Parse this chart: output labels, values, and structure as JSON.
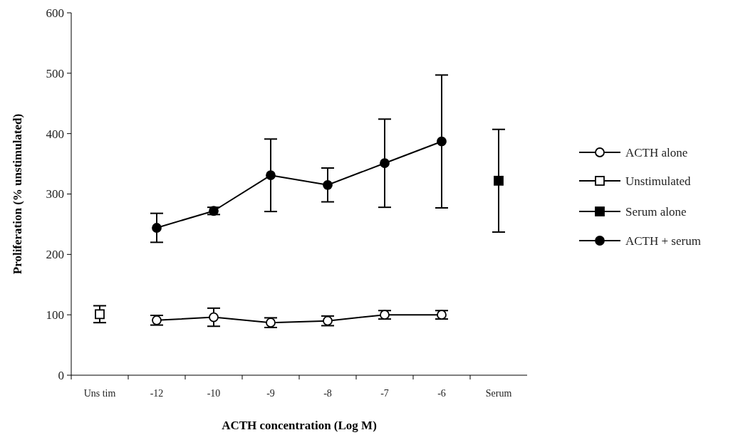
{
  "chart_data": {
    "type": "line",
    "xlabel": "ACTH concentration (Log M)",
    "ylabel": "Proliferation (% unstimulated)",
    "categories": [
      "Uns tim",
      "-12",
      "-10",
      "-9",
      "-8",
      "-7",
      "-6",
      "Serum"
    ],
    "ylim": [
      0,
      600
    ],
    "yticks": [
      0,
      100,
      200,
      300,
      400,
      500,
      600
    ],
    "grid": false,
    "legend": "right",
    "line_style": "solid",
    "series": [
      {
        "name": "ACTH alone",
        "marker": "circle",
        "color": "#ffffff",
        "values": [
          null,
          91,
          96,
          87,
          90,
          100,
          100,
          null
        ],
        "errors": [
          null,
          8,
          15,
          8,
          8,
          7,
          7,
          null
        ]
      },
      {
        "name": "Unstimulated",
        "type": "scatter",
        "marker": "square",
        "color": "#ffffff",
        "values": [
          101,
          null,
          null,
          null,
          null,
          null,
          null,
          null
        ],
        "errors": [
          14,
          null,
          null,
          null,
          null,
          null,
          null,
          null
        ]
      },
      {
        "name": "Serum alone",
        "type": "scatter",
        "marker": "square",
        "color": "#000000",
        "values": [
          null,
          null,
          null,
          null,
          null,
          null,
          null,
          322
        ],
        "errors": [
          null,
          null,
          null,
          null,
          null,
          null,
          null,
          85
        ]
      },
      {
        "name": "ACTH + serum",
        "marker": "circle",
        "color": "#000000",
        "values": [
          null,
          244,
          272,
          331,
          315,
          351,
          387,
          null
        ],
        "errors": [
          null,
          24,
          6,
          60,
          28,
          73,
          110,
          null
        ]
      }
    ]
  }
}
